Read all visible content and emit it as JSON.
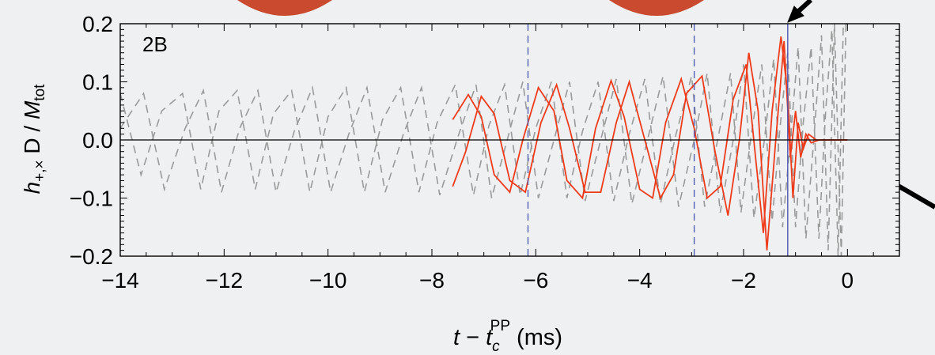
{
  "chart_data": {
    "type": "line",
    "panel_label": "2B",
    "ylabel": {
      "main": "h",
      "sub": "+,×",
      "mid": " D / ",
      "main2": "M",
      "sub2": "tot"
    },
    "xlabel": {
      "t": "t",
      "dash": " − ",
      "tc": "t",
      "sub": "c",
      "sup": "PP",
      "unit": " (ms)"
    },
    "xlim": [
      -14,
      1
    ],
    "ylim": [
      -0.2,
      0.2
    ],
    "x_ticks": [
      -14,
      -12,
      -10,
      -8,
      -6,
      -4,
      -2,
      0
    ],
    "x_tick_labels": [
      "−14",
      "−12",
      "−10",
      "−8",
      "−6",
      "−4",
      "−2",
      "0"
    ],
    "y_ticks": [
      -0.2,
      -0.1,
      0.0,
      0.1,
      0.2
    ],
    "y_tick_labels": [
      "−0.2",
      "−0.1",
      "0.0",
      "0.1",
      "0.2"
    ],
    "vlines_dashed": [
      -6.15,
      -2.95
    ],
    "vline_solid": -1.15,
    "colors": {
      "numerical": "#ee3b1b",
      "pn": "#9a9a9a",
      "vdash": "#5560b8",
      "vsolid": "#4c56b0",
      "axis": "#000000"
    },
    "series": [
      {
        "style": "dashed",
        "points": [
          [
            -14,
            0.08
          ],
          [
            -13.6,
            -0.06
          ],
          [
            -13.2,
            0.05
          ],
          [
            -12.8,
            0.08
          ],
          [
            -12.45,
            -0.085
          ],
          [
            -12.1,
            0.05
          ],
          [
            -11.75,
            0.085
          ],
          [
            -11.4,
            -0.085
          ],
          [
            -11.05,
            0.045
          ],
          [
            -10.7,
            0.085
          ],
          [
            -10.35,
            -0.09
          ],
          [
            -10.0,
            0.04
          ],
          [
            -9.65,
            0.09
          ],
          [
            -9.3,
            -0.09
          ],
          [
            -8.95,
            0.035
          ],
          [
            -8.6,
            0.09
          ],
          [
            -8.25,
            -0.09
          ],
          [
            -7.9,
            0.03
          ],
          [
            -7.55,
            0.095
          ],
          [
            -7.2,
            -0.095
          ],
          [
            -6.9,
            0.025
          ],
          [
            -6.6,
            0.095
          ],
          [
            -6.3,
            -0.095
          ],
          [
            -6.0,
            0.02
          ],
          [
            -5.7,
            0.1
          ],
          [
            -5.4,
            -0.1
          ],
          [
            -5.1,
            0.015
          ],
          [
            -4.8,
            0.1
          ],
          [
            -4.5,
            -0.105
          ],
          [
            -4.2,
            0.01
          ],
          [
            -3.9,
            0.105
          ],
          [
            -3.6,
            -0.11
          ],
          [
            -3.3,
            0.01
          ],
          [
            -3.0,
            0.11
          ],
          [
            -2.75,
            -0.115
          ],
          [
            -2.5,
            0.0
          ],
          [
            -2.25,
            0.115
          ],
          [
            -2.05,
            -0.125
          ],
          [
            -1.85,
            0.01
          ],
          [
            -1.65,
            0.13
          ],
          [
            -1.45,
            -0.14
          ],
          [
            -1.3,
            0.02
          ],
          [
            -1.15,
            0.15
          ],
          [
            -1.0,
            -0.15
          ],
          [
            -0.85,
            0.03
          ],
          [
            -0.7,
            0.16
          ],
          [
            -0.55,
            -0.17
          ],
          [
            -0.42,
            0.05
          ],
          [
            -0.3,
            0.19
          ],
          [
            -0.18,
            -0.2
          ],
          [
            -0.08,
            0.2
          ],
          [
            0.0,
            0.2
          ]
        ]
      },
      {
        "style": "dashed",
        "points": [
          [
            -14,
            0.02
          ],
          [
            -13.55,
            0.08
          ],
          [
            -13.15,
            -0.085
          ],
          [
            -12.75,
            0.02
          ],
          [
            -12.4,
            0.085
          ],
          [
            -12.05,
            -0.09
          ],
          [
            -11.7,
            0.02
          ],
          [
            -11.35,
            0.085
          ],
          [
            -11.0,
            -0.09
          ],
          [
            -10.65,
            0.015
          ],
          [
            -10.3,
            0.09
          ],
          [
            -9.95,
            -0.09
          ],
          [
            -9.6,
            0.01
          ],
          [
            -9.25,
            0.09
          ],
          [
            -8.9,
            -0.09
          ],
          [
            -8.55,
            0.01
          ],
          [
            -8.2,
            0.09
          ],
          [
            -7.85,
            -0.095
          ],
          [
            -7.5,
            0.005
          ],
          [
            -7.15,
            0.095
          ],
          [
            -6.85,
            -0.1
          ],
          [
            -6.55,
            0.0
          ],
          [
            -6.25,
            0.1
          ],
          [
            -5.95,
            -0.1
          ],
          [
            -5.65,
            0.0
          ],
          [
            -5.35,
            0.1
          ],
          [
            -5.05,
            -0.105
          ],
          [
            -4.75,
            0.0
          ],
          [
            -4.45,
            0.105
          ],
          [
            -4.15,
            -0.11
          ],
          [
            -3.85,
            0.0
          ],
          [
            -3.55,
            0.11
          ],
          [
            -3.25,
            -0.115
          ],
          [
            -2.95,
            0.0
          ],
          [
            -2.7,
            0.115
          ],
          [
            -2.45,
            -0.125
          ],
          [
            -2.2,
            0.0
          ],
          [
            -2.0,
            0.13
          ],
          [
            -1.8,
            -0.135
          ],
          [
            -1.6,
            0.0
          ],
          [
            -1.42,
            0.14
          ],
          [
            -1.25,
            -0.15
          ],
          [
            -1.1,
            0.0
          ],
          [
            -0.95,
            0.16
          ],
          [
            -0.8,
            -0.17
          ],
          [
            -0.65,
            0.0
          ],
          [
            -0.5,
            0.18
          ],
          [
            -0.37,
            -0.19
          ],
          [
            -0.25,
            0.2
          ],
          [
            -0.12,
            -0.2
          ],
          [
            -0.03,
            0.2
          ]
        ]
      },
      {
        "style": "solid",
        "points": [
          [
            -7.6,
            0.035
          ],
          [
            -7.3,
            0.078
          ],
          [
            -7.05,
            0.04
          ],
          [
            -6.8,
            -0.06
          ],
          [
            -6.5,
            -0.09
          ],
          [
            -6.25,
            0.0
          ],
          [
            -5.95,
            0.09
          ],
          [
            -5.65,
            0.05
          ],
          [
            -5.4,
            -0.07
          ],
          [
            -5.1,
            -0.1
          ],
          [
            -4.85,
            0.02
          ],
          [
            -4.55,
            0.102
          ],
          [
            -4.3,
            0.04
          ],
          [
            -4.0,
            -0.085
          ],
          [
            -3.75,
            -0.1
          ],
          [
            -3.5,
            0.03
          ],
          [
            -3.2,
            0.105
          ],
          [
            -2.95,
            0.02
          ],
          [
            -2.7,
            -0.1
          ],
          [
            -2.45,
            -0.08
          ],
          [
            -2.2,
            0.07
          ],
          [
            -1.95,
            0.13
          ],
          [
            -1.78,
            -0.02
          ],
          [
            -1.62,
            -0.16
          ],
          [
            -1.45,
            0.05
          ],
          [
            -1.28,
            0.178
          ],
          [
            -1.15,
            0.08
          ],
          [
            -1.05,
            -0.1
          ],
          [
            -0.95,
            0.03
          ],
          [
            -0.85,
            -0.015
          ],
          [
            -0.75,
            0.01
          ],
          [
            -0.6,
            0.0
          ],
          [
            0.0,
            0.0
          ]
        ]
      },
      {
        "style": "solid",
        "points": [
          [
            -7.6,
            -0.08
          ],
          [
            -7.35,
            -0.02
          ],
          [
            -7.05,
            0.075
          ],
          [
            -6.8,
            0.045
          ],
          [
            -6.5,
            -0.07
          ],
          [
            -6.2,
            -0.09
          ],
          [
            -5.9,
            0.03
          ],
          [
            -5.6,
            0.095
          ],
          [
            -5.35,
            0.02
          ],
          [
            -5.05,
            -0.09
          ],
          [
            -4.75,
            -0.09
          ],
          [
            -4.45,
            0.03
          ],
          [
            -4.2,
            0.1
          ],
          [
            -3.9,
            0.0
          ],
          [
            -3.6,
            -0.1
          ],
          [
            -3.35,
            -0.06
          ],
          [
            -3.1,
            0.08
          ],
          [
            -2.8,
            0.11
          ],
          [
            -2.55,
            -0.02
          ],
          [
            -2.3,
            -0.13
          ],
          [
            -2.08,
            0.0
          ],
          [
            -1.9,
            0.15
          ],
          [
            -1.72,
            0.05
          ],
          [
            -1.55,
            -0.19
          ],
          [
            -1.38,
            0.0
          ],
          [
            -1.22,
            0.17
          ],
          [
            -1.1,
            -0.03
          ],
          [
            -1.0,
            0.05
          ],
          [
            -0.9,
            -0.03
          ],
          [
            -0.8,
            0.01
          ],
          [
            -0.7,
            -0.005
          ],
          [
            -0.55,
            0.0
          ],
          [
            0.0,
            0.0
          ]
        ]
      }
    ]
  }
}
